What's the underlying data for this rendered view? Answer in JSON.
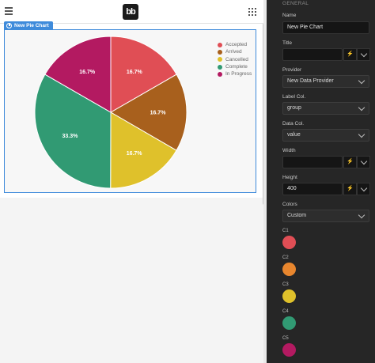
{
  "chart_component": {
    "tag_label": "New Pie Chart"
  },
  "chart_data": {
    "type": "pie",
    "title": "",
    "categories": [
      "Accepted",
      "Arrived",
      "Cancelled",
      "Complete",
      "In Progress"
    ],
    "values": [
      16.7,
      16.7,
      16.7,
      33.3,
      16.7
    ],
    "value_labels": [
      "16.7%",
      "16.7%",
      "16.7%",
      "33.3%",
      "16.7%"
    ],
    "colors": [
      "#e04e55",
      "#a8601d",
      "#dfc12b",
      "#319a73",
      "#b31a61"
    ],
    "legend_position": "top-right",
    "start_angle_deg": 0
  },
  "panel": {
    "section_title": "GENERAL",
    "name_label": "Name",
    "name_value": "New Pie Chart",
    "title_label": "Title",
    "title_value": "",
    "provider_label": "Provider",
    "provider_value": "New Data Provider",
    "label_col_label": "Label Col.",
    "label_col_value": "group",
    "data_col_label": "Data Col.",
    "data_col_value": "value",
    "width_label": "Width",
    "width_value": "",
    "height_label": "Height",
    "height_value": "400",
    "colors_label": "Colors",
    "colors_value": "Custom",
    "color_swatches": [
      {
        "label": "C1",
        "color": "#e04e55"
      },
      {
        "label": "C2",
        "color": "#e8862e"
      },
      {
        "label": "C3",
        "color": "#dfc12b"
      },
      {
        "label": "C4",
        "color": "#319a73"
      },
      {
        "label": "C5",
        "color": "#b31a61"
      }
    ],
    "binding_icon": "lightning-icon",
    "dropdown_icon": "chevron-down-icon"
  }
}
